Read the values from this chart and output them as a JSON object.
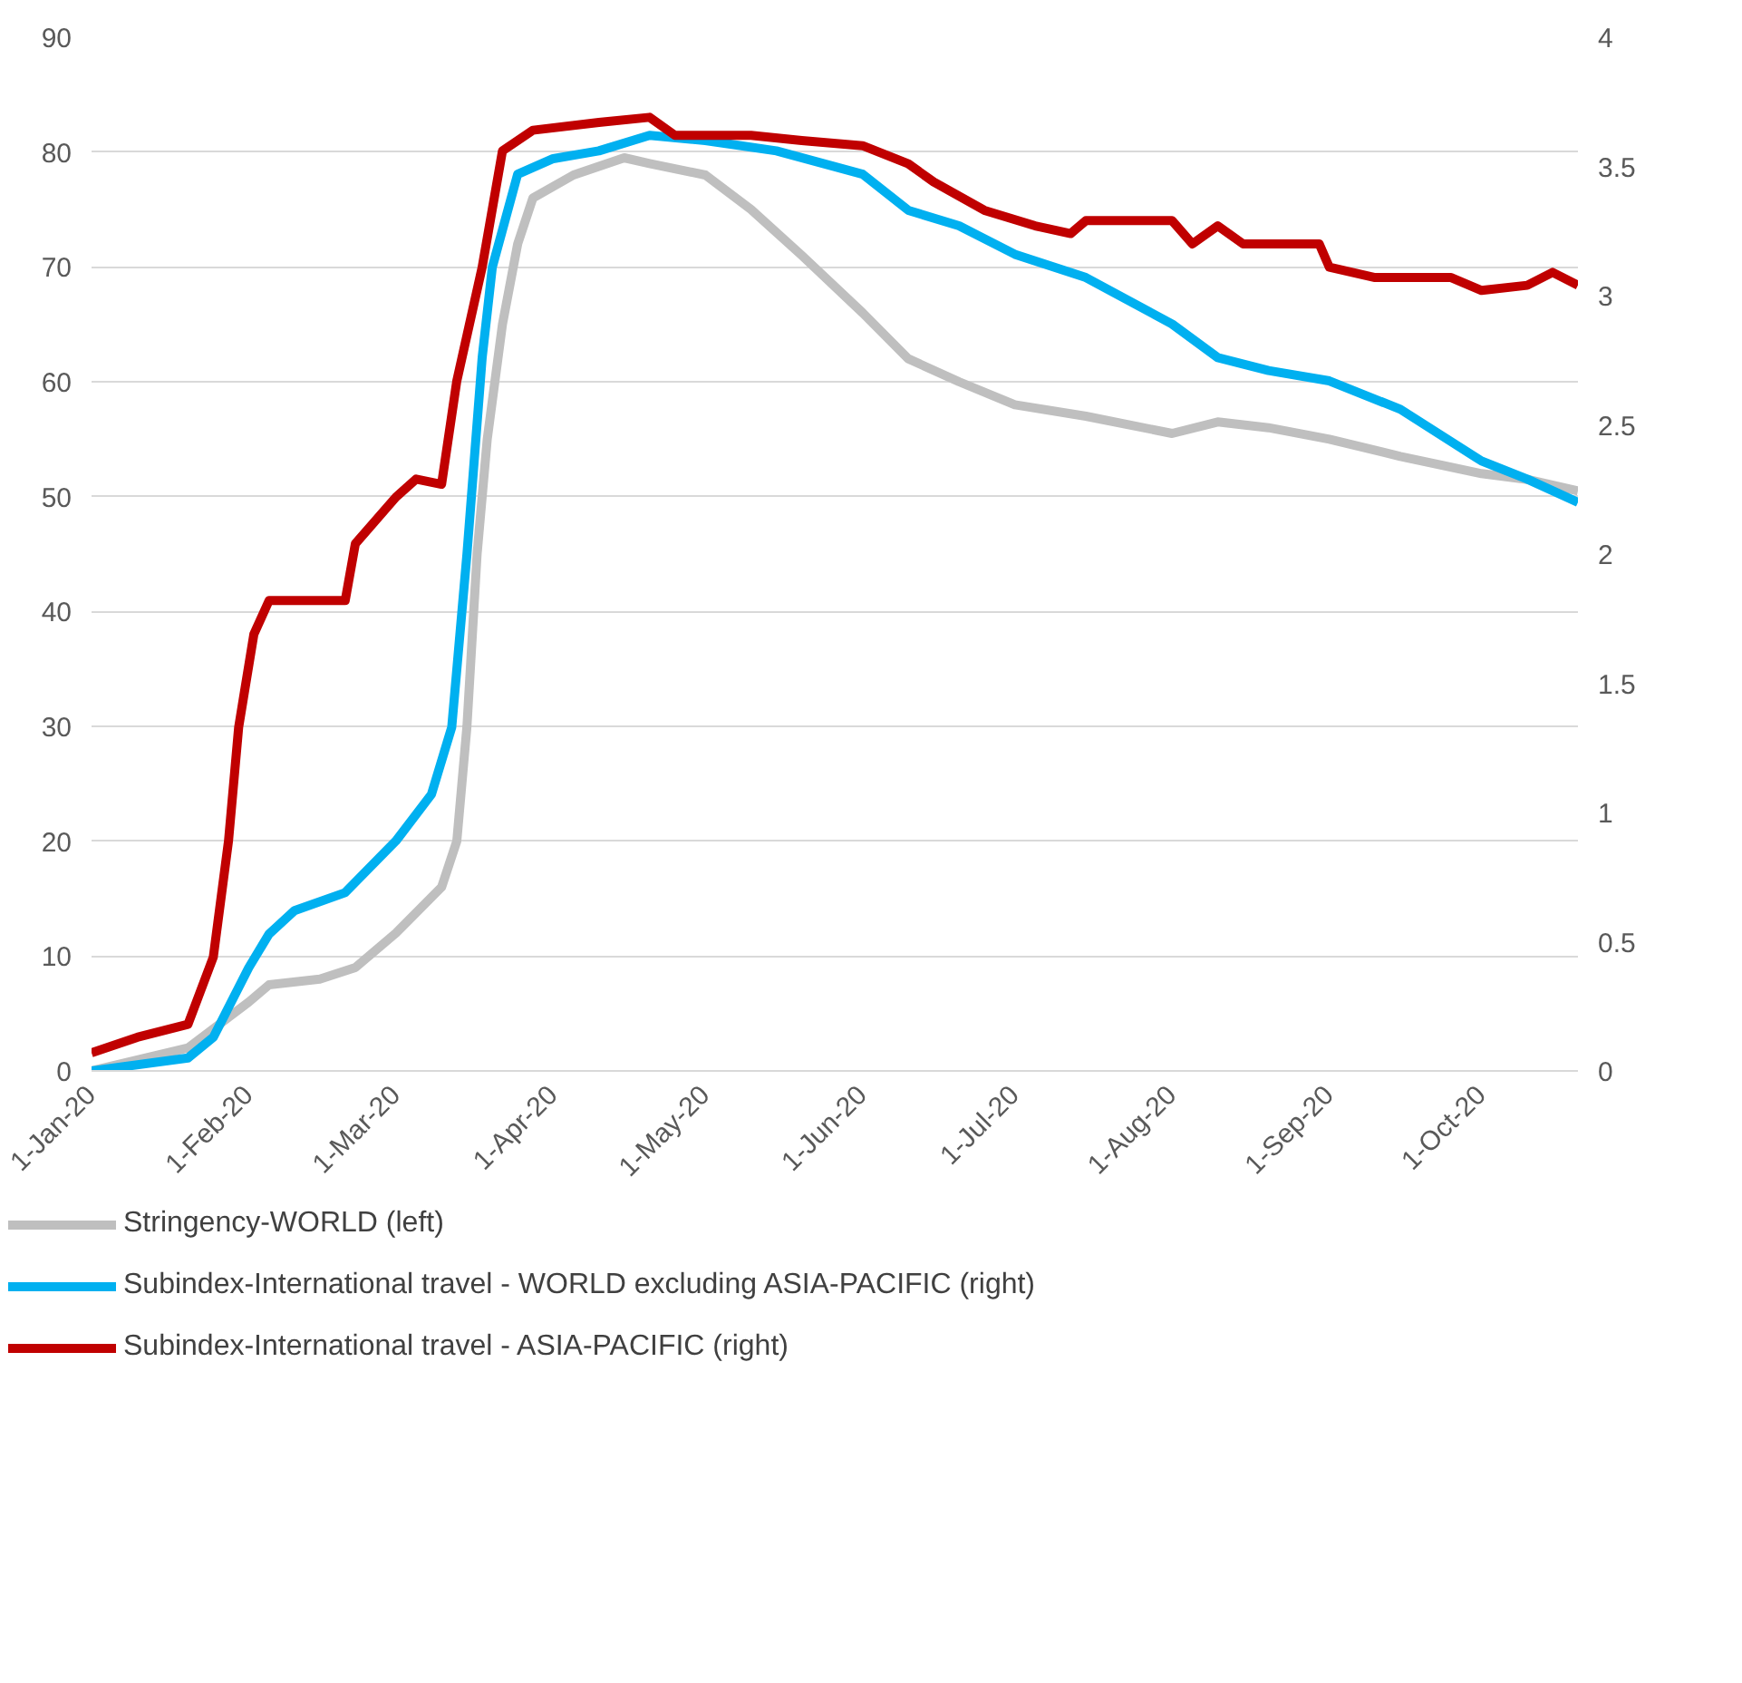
{
  "chart_data": {
    "type": "line",
    "xlim": [
      "2020-01-01",
      "2020-10-20"
    ],
    "xticks": [
      {
        "value": "2020-01-01",
        "label": "1-Jan-20"
      },
      {
        "value": "2020-02-01",
        "label": "1-Feb-20"
      },
      {
        "value": "2020-03-01",
        "label": "1-Mar-20"
      },
      {
        "value": "2020-04-01",
        "label": "1-Apr-20"
      },
      {
        "value": "2020-05-01",
        "label": "1-May-20"
      },
      {
        "value": "2020-06-01",
        "label": "1-Jun-20"
      },
      {
        "value": "2020-07-01",
        "label": "1-Jul-20"
      },
      {
        "value": "2020-08-01",
        "label": "1-Aug-20"
      },
      {
        "value": "2020-09-01",
        "label": "1-Sep-20"
      },
      {
        "value": "2020-10-01",
        "label": "1-Oct-20"
      }
    ],
    "ylim": [
      0,
      90
    ],
    "yticks": [
      0,
      10,
      20,
      30,
      40,
      50,
      60,
      70,
      80,
      90
    ],
    "y2lim": [
      0,
      4
    ],
    "y2ticks": [
      0,
      0.5,
      1,
      1.5,
      2,
      2.5,
      3,
      3.5,
      4
    ],
    "grid": "y",
    "legend": "bottom",
    "line_style": "solid",
    "series": [
      {
        "name": "Stringency-WORLD (left)",
        "color": "#bfbfbf",
        "axis": "y",
        "x": [
          "2020-01-01",
          "2020-01-20",
          "2020-02-01",
          "2020-02-05",
          "2020-02-15",
          "2020-02-22",
          "2020-03-01",
          "2020-03-10",
          "2020-03-13",
          "2020-03-15",
          "2020-03-17",
          "2020-03-19",
          "2020-03-22",
          "2020-03-25",
          "2020-03-28",
          "2020-04-05",
          "2020-04-15",
          "2020-04-20",
          "2020-05-01",
          "2020-05-10",
          "2020-05-20",
          "2020-06-01",
          "2020-06-10",
          "2020-06-20",
          "2020-07-01",
          "2020-07-15",
          "2020-08-01",
          "2020-08-10",
          "2020-08-20",
          "2020-09-01",
          "2020-09-15",
          "2020-10-01",
          "2020-10-10",
          "2020-10-20"
        ],
        "values": [
          0,
          2,
          6,
          7.5,
          8,
          9,
          12,
          16,
          20,
          30,
          45,
          55,
          65,
          72,
          76,
          78,
          79.5,
          79,
          78,
          75,
          71,
          66,
          62,
          60,
          58,
          57,
          55.5,
          56.5,
          56,
          55,
          53.5,
          52,
          51.5,
          50.5
        ]
      },
      {
        "name": "Subindex-International travel - WORLD excluding ASIA-PACIFIC (right)",
        "color": "#00b0f0",
        "axis": "y2",
        "x": [
          "2020-01-01",
          "2020-01-20",
          "2020-01-25",
          "2020-02-01",
          "2020-02-05",
          "2020-02-10",
          "2020-02-20",
          "2020-03-01",
          "2020-03-08",
          "2020-03-12",
          "2020-03-15",
          "2020-03-18",
          "2020-03-20",
          "2020-03-25",
          "2020-04-01",
          "2020-04-10",
          "2020-04-20",
          "2020-05-01",
          "2020-05-15",
          "2020-06-01",
          "2020-06-10",
          "2020-06-20",
          "2020-07-01",
          "2020-07-15",
          "2020-08-01",
          "2020-08-10",
          "2020-08-20",
          "2020-09-01",
          "2020-09-15",
          "2020-10-01",
          "2020-10-10",
          "2020-10-20"
        ],
        "values": [
          0,
          0.05,
          0.13,
          0.4,
          0.53,
          0.62,
          0.69,
          0.89,
          1.07,
          1.33,
          2.0,
          2.76,
          3.11,
          3.47,
          3.53,
          3.56,
          3.62,
          3.6,
          3.56,
          3.47,
          3.33,
          3.27,
          3.16,
          3.07,
          2.89,
          2.76,
          2.71,
          2.67,
          2.56,
          2.36,
          2.29,
          2.2
        ]
      },
      {
        "name": "Subindex-International travel - ASIA-PACIFIC (right)",
        "color": "#c00000",
        "axis": "y2",
        "x": [
          "2020-01-01",
          "2020-01-10",
          "2020-01-20",
          "2020-01-25",
          "2020-01-28",
          "2020-01-30",
          "2020-02-02",
          "2020-02-05",
          "2020-02-20",
          "2020-02-22",
          "2020-03-01",
          "2020-03-05",
          "2020-03-10",
          "2020-03-13",
          "2020-03-18",
          "2020-03-22",
          "2020-03-28",
          "2020-04-10",
          "2020-04-20",
          "2020-04-25",
          "2020-05-10",
          "2020-05-20",
          "2020-06-01",
          "2020-06-10",
          "2020-06-15",
          "2020-06-25",
          "2020-07-05",
          "2020-07-12",
          "2020-07-15",
          "2020-08-01",
          "2020-08-05",
          "2020-08-10",
          "2020-08-15",
          "2020-08-30",
          "2020-09-01",
          "2020-09-10",
          "2020-09-25",
          "2020-10-01",
          "2020-10-10",
          "2020-10-15",
          "2020-10-20"
        ],
        "values": [
          0.07,
          0.13,
          0.18,
          0.44,
          0.89,
          1.33,
          1.69,
          1.82,
          1.82,
          2.04,
          2.22,
          2.29,
          2.27,
          2.67,
          3.11,
          3.56,
          3.64,
          3.67,
          3.69,
          3.62,
          3.62,
          3.6,
          3.58,
          3.51,
          3.44,
          3.33,
          3.27,
          3.24,
          3.29,
          3.29,
          3.2,
          3.27,
          3.2,
          3.2,
          3.11,
          3.07,
          3.07,
          3.02,
          3.04,
          3.09,
          3.04
        ]
      }
    ]
  }
}
